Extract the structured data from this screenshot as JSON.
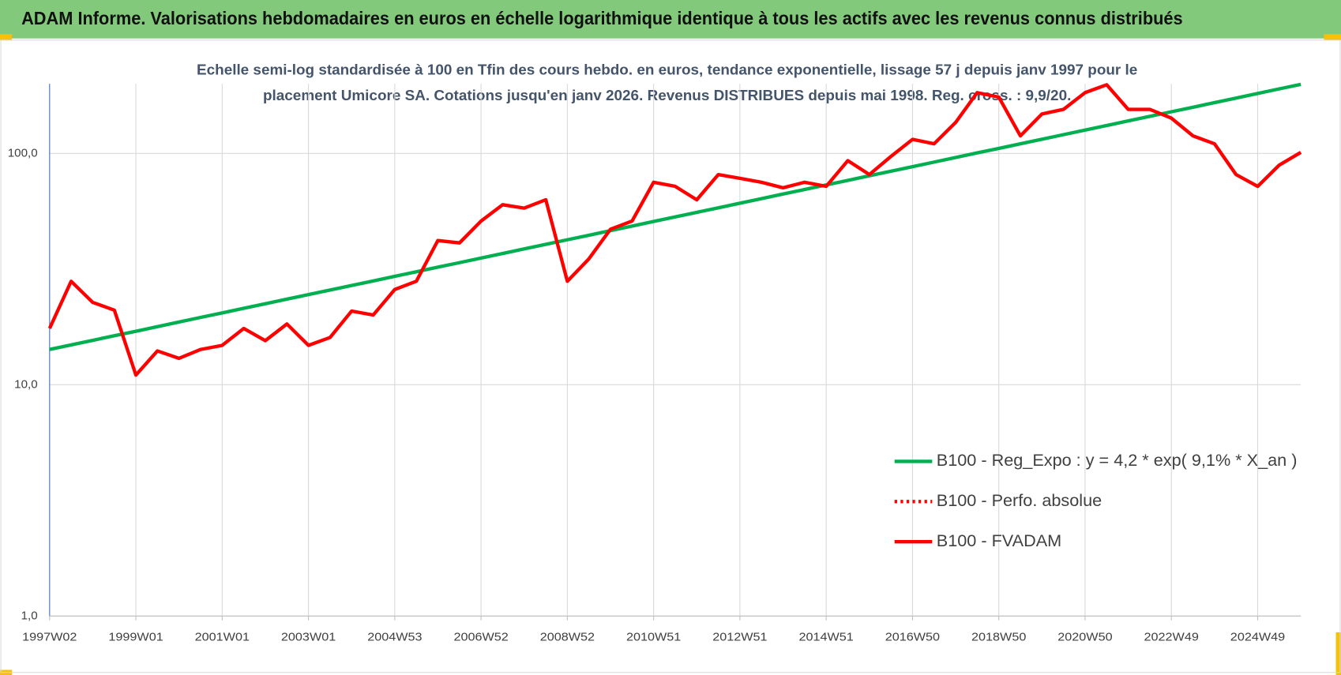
{
  "chart_data": {
    "type": "line",
    "title": "ADAM Informe. Valorisations hebdomadaires en euros en échelle logarithmique identique à tous les actifs avec les revenus connus distribués",
    "subtitle": [
      "Echelle semi-log standardisée à 100 en Tfin des cours hebdo. en euros, tendance exponentielle, lissage 57 j depuis janv 1997 pour le",
      "placement Umicore SA. Cotations jusqu'en janv 2026. Revenus DISTRIBUES depuis mai 1998. Reg. cross. : 9,9/20."
    ],
    "log_scale": true,
    "grid": true,
    "legend": "lower right",
    "ylim": [
      1,
      200
    ],
    "yticks": [
      {
        "value": 1,
        "label": "1,0"
      },
      {
        "value": 10,
        "label": "10,0"
      },
      {
        "value": 100,
        "label": "100,0"
      }
    ],
    "categories": [
      "1997W02",
      null,
      null,
      null,
      "1999W01",
      null,
      null,
      null,
      "2001W01",
      null,
      null,
      null,
      "2003W01",
      null,
      null,
      null,
      "2004W53",
      null,
      null,
      null,
      "2006W52",
      null,
      null,
      null,
      "2008W52",
      null,
      null,
      null,
      "2010W51",
      null,
      null,
      null,
      "2012W51",
      null,
      null,
      null,
      "2014W51",
      null,
      null,
      null,
      "2016W50",
      null,
      null,
      null,
      "2018W50",
      null,
      null,
      null,
      "2020W50",
      null,
      null,
      null,
      "2022W49",
      null,
      null,
      null,
      "2024W49",
      null,
      null
    ],
    "series": [
      {
        "name": "B100 - Reg_Expo : y = 4,2 * exp( 9,1% *  X_an )",
        "color": "#00b050",
        "dash": "solid",
        "values": [
          14.2,
          14.86,
          15.55,
          16.28,
          17.03,
          17.83,
          18.66,
          19.53,
          20.43,
          21.39,
          22.38,
          23.43,
          24.51,
          25.66,
          26.85,
          28.1,
          29.41,
          30.78,
          32.21,
          33.71,
          35.28,
          36.92,
          38.64,
          40.44,
          42.32,
          44.29,
          46.35,
          48.51,
          50.77,
          53.13,
          55.6,
          58.19,
          60.9,
          63.74,
          66.7,
          69.81,
          73.05,
          76.45,
          80.0,
          83.73,
          87.6,
          91.68,
          96.0,
          100.5,
          105.1,
          110.0,
          115.1,
          120.5,
          126.1,
          132.0,
          138.1,
          144.5,
          151.3,
          158.3,
          165.7,
          173.4,
          181.5,
          190.0,
          198.8
        ]
      },
      {
        "name": "B100 - Perfo. absolue",
        "color": "#ff0000",
        "dash": "dotted",
        "values": [
          null,
          null,
          null,
          null,
          null,
          null,
          null,
          null,
          null,
          null,
          null,
          null,
          null,
          null,
          null,
          null,
          null,
          null,
          null,
          null,
          null,
          null,
          null,
          null,
          null,
          null,
          null,
          null,
          null,
          null,
          null,
          null,
          null,
          null,
          null,
          null,
          null,
          null,
          null,
          null,
          null,
          null,
          null,
          null,
          null,
          null,
          null,
          null,
          null,
          null,
          null,
          null,
          null,
          null,
          null,
          null,
          null,
          null,
          null
        ]
      },
      {
        "name": "B100 - FVADAM",
        "color": "#ff0000",
        "dash": "solid",
        "values": [
          17.5,
          28,
          22.7,
          21,
          11,
          14,
          13,
          14.2,
          14.8,
          17.5,
          15.5,
          18.3,
          14.8,
          16,
          20.8,
          20,
          25.8,
          28,
          42,
          41,
          51,
          60,
          58,
          63,
          28,
          35,
          47,
          51,
          75,
          72,
          63,
          81,
          78,
          75,
          71,
          75,
          72,
          93,
          81,
          97,
          115,
          110,
          136,
          183,
          175,
          119,
          148,
          155,
          183,
          198,
          155,
          155,
          142,
          119,
          110,
          81,
          72,
          89,
          101
        ]
      }
    ]
  }
}
